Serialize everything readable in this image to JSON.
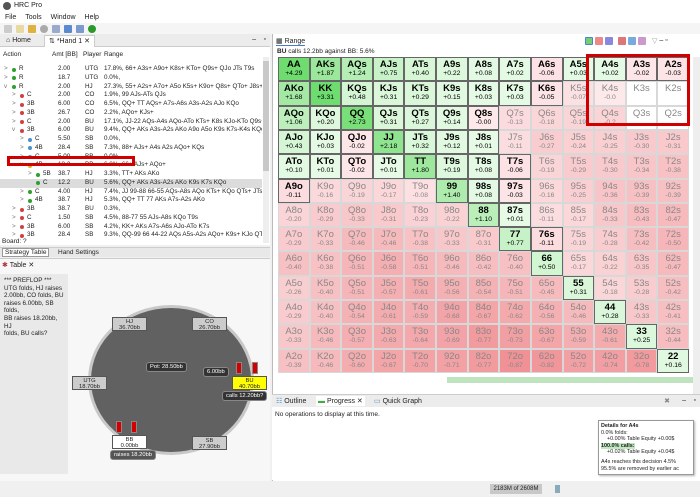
{
  "app": {
    "title": "HRC Pro",
    "menu": [
      "File",
      "Tools",
      "Window",
      "Help"
    ]
  },
  "tabs": {
    "home": "Home",
    "hand": "*Hand 1"
  },
  "tree": {
    "headers": {
      "action": "Action",
      "amt": "Amt [BB]",
      "player": "Player",
      "range": "Range"
    },
    "rows": [
      {
        "a": "R",
        "amt": "2.00",
        "p": "UTG",
        "r": "17.8%, 66+ A3s+ A9o+ K8s+ KTo+ Q9s+ QJo JTs T9s",
        "lvl": 0,
        "dot": "#2ca02c",
        "exp": ">"
      },
      {
        "a": "R",
        "amt": "18.7",
        "p": "UTG",
        "r": "0.0%,",
        "lvl": 0,
        "dot": "#2ca02c",
        "exp": ">"
      },
      {
        "a": "R",
        "amt": "2.00",
        "p": "HJ",
        "r": "27.3%, 55+ A2s+ A7o+ A5o K5s+ K9o+ Q8s+ QTo+ J8s+ JTo...",
        "lvl": 0,
        "dot": "#2ca02c",
        "exp": "v"
      },
      {
        "a": "C",
        "amt": "2.00",
        "p": "CO",
        "r": "1.9%, 99 AJs-ATs QJs",
        "lvl": 1,
        "dot": "#d04040",
        "exp": ">"
      },
      {
        "a": "3B",
        "amt": "6.00",
        "p": "CO",
        "r": "6.5%, QQ+ TT AQs+ A7s-A6s A3s-A2s AJo KQo",
        "lvl": 1,
        "dot": "#d04040",
        "exp": ">"
      },
      {
        "a": "3B",
        "amt": "26.7",
        "p": "CO",
        "r": "2.2%, AQo+ KJs+",
        "lvl": 1,
        "dot": "#d04040",
        "exp": ">"
      },
      {
        "a": "C",
        "amt": "2.00",
        "p": "BU",
        "r": "17.1%, JJ-22 AQs-A4s AQo-ATo KTs+ K8s KJo-KTo Q9s+ QJ...",
        "lvl": 1,
        "dot": "#d04040",
        "exp": ">"
      },
      {
        "a": "3B",
        "amt": "6.00",
        "p": "BU",
        "r": "9.4%, QQ+ AKs A3s-A2s AKo A9o A5o K9s K7s-K4s KQo QT6",
        "lvl": 1,
        "dot": "#d04040",
        "exp": "v"
      },
      {
        "a": "C",
        "amt": "5.50",
        "p": "SB",
        "r": "0.0%,",
        "lvl": 2,
        "dot": "#4a90d0",
        "exp": ">"
      },
      {
        "a": "4B",
        "amt": "28.4",
        "p": "SB",
        "r": "7.3%, 88+ AJs+ A4s A2s AQo+ KQs",
        "lvl": 2,
        "dot": "#4a90d0",
        "exp": ">"
      },
      {
        "a": "C",
        "amt": "5.00",
        "p": "BB",
        "r": "0.0%,",
        "lvl": 2,
        "dot": "#4a90d0",
        "exp": ">"
      },
      {
        "a": "4B",
        "amt": "18.2",
        "p": "BB",
        "r": "6.8%, 66+ AJs+ AQo+",
        "lvl": 2,
        "dot": "#e0b020",
        "exp": "v"
      },
      {
        "a": "5B",
        "amt": "38.7",
        "p": "HJ",
        "r": "3.3%, TT+ AKs AKo",
        "lvl": 3,
        "dot": "#2ca02c",
        "exp": ">"
      },
      {
        "a": "C",
        "amt": "12.2",
        "p": "BU",
        "r": "5.6%, QQ+ AKs A3s-A2s AKo K9s K7s KQo",
        "lvl": 3,
        "dot": "#2ca02c",
        "exp": "",
        "sel": true
      },
      {
        "a": "C",
        "amt": "4.00",
        "p": "HJ",
        "r": "7.4%, JJ 99-88 66-55 AQs-A8s AQo KTs+ KQo QTs+ JTs",
        "lvl": 2,
        "dot": "#2ca02c",
        "exp": ">"
      },
      {
        "a": "4B",
        "amt": "38.7",
        "p": "HJ",
        "r": "5.3%, QQ+ TT 77 AKs A7s-A2s AKo",
        "lvl": 2,
        "dot": "#2ca02c",
        "exp": ">"
      },
      {
        "a": "3B",
        "amt": "38.7",
        "p": "BU",
        "r": "0.3%,",
        "lvl": 1,
        "dot": "#d04040",
        "exp": ">"
      },
      {
        "a": "C",
        "amt": "1.50",
        "p": "SB",
        "r": "4.5%, 88-77 55 AJs-A8s KQo T9s",
        "lvl": 1,
        "dot": "#d04040",
        "exp": ">"
      },
      {
        "a": "3B",
        "amt": "6.00",
        "p": "SB",
        "r": "4.2%, KK+ AKs A7s-A6s AJo-ATo K7s",
        "lvl": 1,
        "dot": "#d04040",
        "exp": ">"
      },
      {
        "a": "3B",
        "amt": "28.4",
        "p": "SB",
        "r": "9.3%, QQ-99 66 44-22 AQs A5s-A2s AQo+ K9s+ KJo QTs+ JTs",
        "lvl": 1,
        "dot": "#d04040",
        "exp": ">"
      }
    ],
    "board": "Board: ?"
  },
  "left_tabs": {
    "strategy": "Strategy Table",
    "hand_settings": "Hand Settings"
  },
  "table": {
    "tab": "Table",
    "log": [
      "*** PREFLOP ***",
      "UTG folds, HJ raises",
      "2.00bb, CO folds, BU",
      "raises 6.00bb, SB folds,",
      "BB raises 18.20bb, HJ",
      "folds, BU calls?"
    ],
    "pot": "Pot:  28.50bb",
    "bet": "6.00bb",
    "seats": {
      "hj": [
        "HJ",
        "36.70bb"
      ],
      "co": [
        "CO",
        "26.70bb"
      ],
      "utg": [
        "UTG",
        "18.70bb"
      ],
      "bu": [
        "BU",
        "40.70bb"
      ],
      "sb": [
        "SB",
        "27.90bb"
      ],
      "bb": [
        "BB",
        "0.00bb"
      ]
    },
    "bu_action": "calls 12.20bb?",
    "bb_action": "raises 18.20bb"
  },
  "range": {
    "tab": "Range",
    "title_bold": "BU",
    "title": " calls 12.2bb against BB: 5.6%",
    "rows": [
      [
        [
          "AA",
          "+4.29",
          1
        ],
        [
          "AKs",
          "+1.87",
          1
        ],
        [
          "AQs",
          "+1.24",
          1
        ],
        [
          "AJs",
          "+0.75",
          1
        ],
        [
          "ATs",
          "+0.40",
          1
        ],
        [
          "A9s",
          "+0.22",
          1
        ],
        [
          "A8s",
          "+0.08",
          1
        ],
        [
          "A7s",
          "+0.02",
          1
        ],
        [
          "A6s",
          "-0.06",
          1
        ],
        [
          "A5s",
          "+0.03",
          1
        ],
        [
          "A4s",
          "+0.02",
          1
        ],
        [
          "A3s",
          "-0.02",
          1
        ],
        [
          "A2s",
          "-0.03",
          1
        ]
      ],
      [
        [
          "AKo",
          "+1.68",
          1
        ],
        [
          "KK",
          "+3.31",
          1
        ],
        [
          "KQs",
          "+0.48",
          1
        ],
        [
          "KJs",
          "+0.31",
          1
        ],
        [
          "KTs",
          "+0.29",
          1
        ],
        [
          "K9s",
          "+0.15",
          1
        ],
        [
          "K8s",
          "+0.03",
          1
        ],
        [
          "K7s",
          "+0.03",
          1
        ],
        [
          "K6s",
          "-0.05",
          1
        ],
        [
          "K5s",
          "-0.07",
          0
        ],
        [
          "K4s",
          "-0.0",
          0
        ],
        [
          "K3s",
          "",
          0
        ],
        [
          "K2s",
          "",
          0
        ]
      ],
      [
        [
          "AQo",
          "+1.06",
          1
        ],
        [
          "KQo",
          "+0.20",
          1
        ],
        [
          "QQ",
          "+2.73",
          1
        ],
        [
          "QJs",
          "+0.31",
          1
        ],
        [
          "QTs",
          "+0.27",
          1
        ],
        [
          "Q9s",
          "+0.14",
          1
        ],
        [
          "Q8s",
          "-0.00",
          1
        ],
        [
          "Q7s",
          "-0.13",
          0
        ],
        [
          "Q6s",
          "-0.18",
          0
        ],
        [
          "Q5s",
          "-0.19",
          0
        ],
        [
          "Q4s",
          "-0.2",
          0
        ],
        [
          "Q3s",
          "",
          0
        ],
        [
          "Q2s",
          "",
          0
        ]
      ],
      [
        [
          "AJo",
          "+0.43",
          1
        ],
        [
          "KJo",
          "+0.03",
          1
        ],
        [
          "QJo",
          "-0.02",
          1
        ],
        [
          "JJ",
          "+2.18",
          1
        ],
        [
          "JTs",
          "+0.32",
          1
        ],
        [
          "J9s",
          "+0.12",
          1
        ],
        [
          "J8s",
          "+0.01",
          1
        ],
        [
          "J7s",
          "-0.11",
          0
        ],
        [
          "J6s",
          "-0.27",
          0
        ],
        [
          "J5s",
          "-0.24",
          0
        ],
        [
          "J4s",
          "-0.25",
          0
        ],
        [
          "J3s",
          "-0.30",
          0
        ],
        [
          "J2s",
          "-0.31",
          0
        ]
      ],
      [
        [
          "ATo",
          "+0.10",
          1
        ],
        [
          "KTo",
          "+0.01",
          1
        ],
        [
          "QTo",
          "-0.02",
          1
        ],
        [
          "JTo",
          "+0.01",
          1
        ],
        [
          "TT",
          "+1.80",
          1
        ],
        [
          "T9s",
          "+0.19",
          1
        ],
        [
          "T8s",
          "+0.08",
          1
        ],
        [
          "T7s",
          "-0.06",
          1
        ],
        [
          "T6s",
          "-0.19",
          0
        ],
        [
          "T5s",
          "-0.29",
          0
        ],
        [
          "T4s",
          "-0.30",
          0
        ],
        [
          "T3s",
          "-0.34",
          0
        ],
        [
          "T2s",
          "-0.38",
          0
        ]
      ],
      [
        [
          "A9o",
          "-0.11",
          1
        ],
        [
          "K9o",
          "-0.16",
          0
        ],
        [
          "Q9o",
          "-0.19",
          0
        ],
        [
          "J9o",
          "-0.17",
          0
        ],
        [
          "T9o",
          "-0.08",
          0
        ],
        [
          "99",
          "+1.40",
          1
        ],
        [
          "98s",
          "+0.08",
          1
        ],
        [
          "97s",
          "-0.03",
          1
        ],
        [
          "96s",
          "-0.16",
          0
        ],
        [
          "95s",
          "-0.25",
          0
        ],
        [
          "94s",
          "-0.36",
          0
        ],
        [
          "93s",
          "-0.39",
          0
        ],
        [
          "92s",
          "-0.39",
          0
        ]
      ],
      [
        [
          "A8o",
          "-0.20",
          0
        ],
        [
          "K8o",
          "-0.29",
          0
        ],
        [
          "Q8o",
          "-0.33",
          0
        ],
        [
          "J8o",
          "-0.31",
          0
        ],
        [
          "T8o",
          "-0.23",
          0
        ],
        [
          "98o",
          "-0.22",
          0
        ],
        [
          "88",
          "+1.10",
          1
        ],
        [
          "87s",
          "+0.01",
          1
        ],
        [
          "86s",
          "-0.11",
          0
        ],
        [
          "85s",
          "-0.17",
          0
        ],
        [
          "84s",
          "-0.33",
          0
        ],
        [
          "83s",
          "-0.43",
          0
        ],
        [
          "82s",
          "-0.47",
          0
        ]
      ],
      [
        [
          "A7o",
          "-0.29",
          0
        ],
        [
          "K7o",
          "-0.33",
          0
        ],
        [
          "Q7o",
          "-0.46",
          0
        ],
        [
          "J7o",
          "-0.46",
          0
        ],
        [
          "T7o",
          "-0.38",
          0
        ],
        [
          "97o",
          "-0.33",
          0
        ],
        [
          "87o",
          "-0.31",
          0
        ],
        [
          "77",
          "+0.77",
          1
        ],
        [
          "76s",
          "-0.11",
          1
        ],
        [
          "75s",
          "-0.19",
          0
        ],
        [
          "74s",
          "-0.28",
          0
        ],
        [
          "73s",
          "-0.42",
          0
        ],
        [
          "72s",
          "-0.50",
          0
        ]
      ],
      [
        [
          "A6o",
          "-0.40",
          0
        ],
        [
          "K6o",
          "-0.38",
          0
        ],
        [
          "Q6o",
          "-0.51",
          0
        ],
        [
          "J6o",
          "-0.58",
          0
        ],
        [
          "T6o",
          "-0.51",
          0
        ],
        [
          "96o",
          "-0.46",
          0
        ],
        [
          "86o",
          "-0.42",
          0
        ],
        [
          "76o",
          "-0.40",
          0
        ],
        [
          "66",
          "+0.50",
          1
        ],
        [
          "65s",
          "-0.17",
          0
        ],
        [
          "64s",
          "-0.22",
          0
        ],
        [
          "63s",
          "-0.35",
          0
        ],
        [
          "62s",
          "-0.47",
          0
        ]
      ],
      [
        [
          "A5o",
          "-0.26",
          0
        ],
        [
          "K5o",
          "-0.40",
          0
        ],
        [
          "Q5o",
          "-0.51",
          0
        ],
        [
          "J5o",
          "-0.57",
          0
        ],
        [
          "T5o",
          "-0.61",
          0
        ],
        [
          "95o",
          "-0.56",
          0
        ],
        [
          "85o",
          "-0.54",
          0
        ],
        [
          "75o",
          "-0.51",
          0
        ],
        [
          "65o",
          "-0.45",
          0
        ],
        [
          "55",
          "+0.31",
          1
        ],
        [
          "54s",
          "-0.18",
          0
        ],
        [
          "53s",
          "-0.28",
          0
        ],
        [
          "52s",
          "-0.42",
          0
        ]
      ],
      [
        [
          "A4o",
          "-0.29",
          0
        ],
        [
          "K4o",
          "-0.40",
          0
        ],
        [
          "Q4o",
          "-0.54",
          0
        ],
        [
          "J4o",
          "-0.61",
          0
        ],
        [
          "T4o",
          "-0.59",
          0
        ],
        [
          "94o",
          "-0.68",
          0
        ],
        [
          "84o",
          "-0.67",
          0
        ],
        [
          "74o",
          "-0.62",
          0
        ],
        [
          "64o",
          "-0.56",
          0
        ],
        [
          "54o",
          "-0.46",
          0
        ],
        [
          "44",
          "+0.28",
          1
        ],
        [
          "43s",
          "-0.33",
          0
        ],
        [
          "42s",
          "-0.41",
          0
        ]
      ],
      [
        [
          "A3o",
          "-0.33",
          0
        ],
        [
          "K3o",
          "-0.46",
          0
        ],
        [
          "Q3o",
          "-0.57",
          0
        ],
        [
          "J3o",
          "-0.63",
          0
        ],
        [
          "T3o",
          "-0.64",
          0
        ],
        [
          "93o",
          "-0.69",
          0
        ],
        [
          "83o",
          "-0.77",
          0
        ],
        [
          "73o",
          "-0.73",
          0
        ],
        [
          "63o",
          "-0.67",
          0
        ],
        [
          "53o",
          "-0.59",
          0
        ],
        [
          "43o",
          "-0.61",
          0
        ],
        [
          "33",
          "+0.25",
          1
        ],
        [
          "32s",
          "-0.44",
          0
        ]
      ],
      [
        [
          "A2o",
          "-0.39",
          0
        ],
        [
          "K2o",
          "-0.46",
          0
        ],
        [
          "Q2o",
          "-0.60",
          0
        ],
        [
          "J2o",
          "-0.67",
          0
        ],
        [
          "T2o",
          "-0.70",
          0
        ],
        [
          "92o",
          "-0.71",
          0
        ],
        [
          "82o",
          "-0.77",
          0
        ],
        [
          "72o",
          "-0.87",
          0
        ],
        [
          "62o",
          "-0.82",
          0
        ],
        [
          "52o",
          "-0.72",
          0
        ],
        [
          "42o",
          "-0.74",
          0
        ],
        [
          "32o",
          "-0.78",
          0
        ],
        [
          "22",
          "+0.16",
          1
        ]
      ]
    ],
    "tooltip": {
      "title": "Details for A4s",
      "folds": "0.0% folds:",
      "folds_eq": "+0.00% Table Equity +0.00$",
      "calls": "100.0% calls:",
      "calls_eq": "+0.02% Table Equity +0.04$",
      "reach": "A4s reaches this decision 4.5%",
      "removed": "95.5% are removed by earlier ac"
    },
    "colors": {
      "positive": "#6fdc6f",
      "negative": "#f08c96",
      "highlight": "#d00000"
    }
  },
  "bottom": {
    "tabs": [
      "Outline",
      "Progress",
      "Quick Graph"
    ],
    "message": "No operations to display at this time."
  },
  "status": {
    "memory": "2183M of 2608M"
  }
}
